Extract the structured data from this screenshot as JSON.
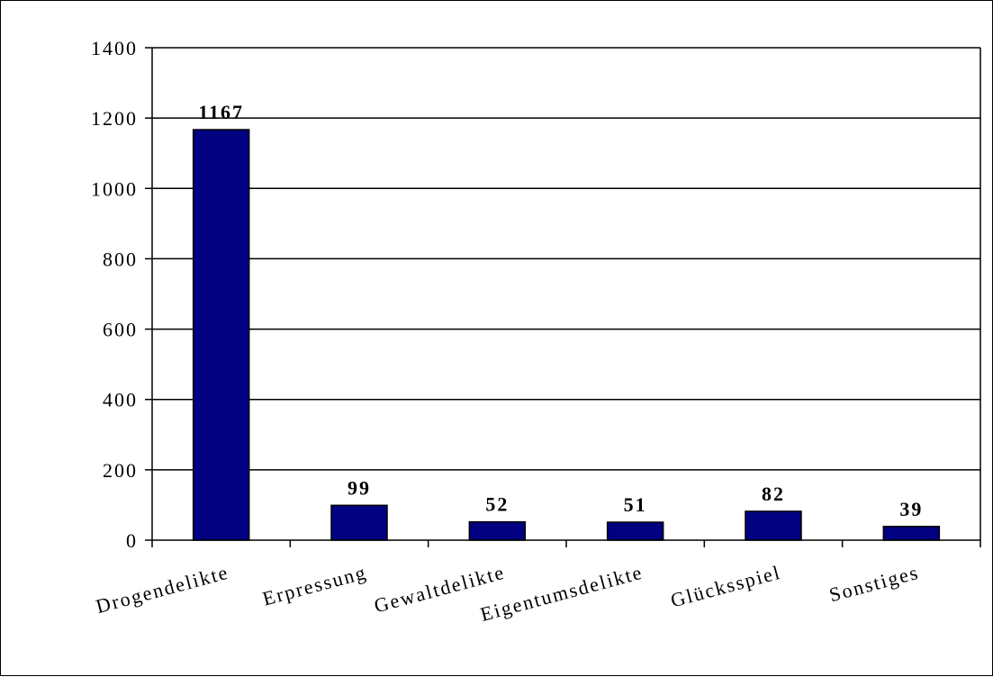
{
  "chart_data": {
    "type": "bar",
    "categories": [
      "Drogendelikte",
      "Erpressung",
      "Gewaltdelikte",
      "Eigentumsdelikte",
      "Glücksspiel",
      "Sonstiges"
    ],
    "values": [
      1167,
      99,
      52,
      51,
      82,
      39
    ],
    "data_labels": [
      "1167",
      "99",
      "52",
      "51",
      "82",
      "39"
    ],
    "title": "",
    "xlabel": "",
    "ylabel": "",
    "ylim": [
      0,
      1400
    ],
    "yticks": [
      0,
      200,
      400,
      600,
      800,
      1000,
      1200,
      1400
    ],
    "ytick_labels": [
      "0",
      "200",
      "400",
      "600",
      "800",
      "1000",
      "1200",
      "1400"
    ],
    "grid": true,
    "legend": "none",
    "bar_color": "#000080"
  }
}
